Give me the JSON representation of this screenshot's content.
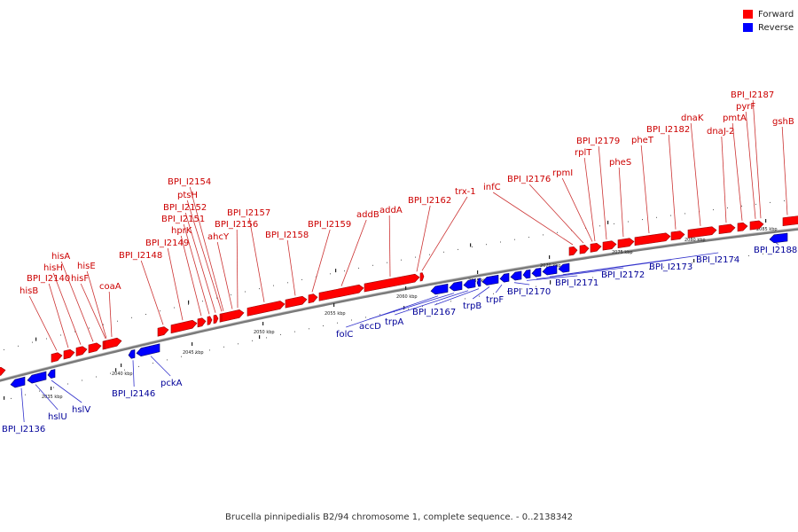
{
  "legend": {
    "forward_label": "Forward",
    "reverse_label": "Reverse",
    "forward_color": "#ff0000",
    "reverse_color": "#0000ff"
  },
  "caption": "Brucella pinnipedialis B2/94 chromosome 1, complete sequence. - 0..2138342",
  "colors": {
    "forward_label": "#cc0000",
    "reverse_label": "#000099",
    "backbone": "#7a7a7a"
  },
  "scale_ticks": [
    "2035 kbp",
    "2040 kbp",
    "2045 kbp",
    "2050 kbp",
    "2055 kbp",
    "2060 kbp",
    "2065 kbp",
    "2070 kbp",
    "2075 kbp",
    "2080 kbp",
    "2085 kbp"
  ],
  "forward_features": [
    "hisB",
    "BPI_I2140",
    "hisH",
    "hisA",
    "hisF",
    "hisE",
    "coaA",
    "BPI_I2148",
    "BPI_I2149",
    "hprK",
    "BPI_I2151",
    "BPI_I2152",
    "ptsH",
    "BPI_I2154",
    "ahcY",
    "BPI_I2156",
    "BPI_I2157",
    "BPI_I2158",
    "BPI_I2159",
    "addB",
    "addA",
    "BPI_I2162",
    "trx-1",
    "infC",
    "BPI_I2176",
    "rpmI",
    "rplT",
    "BPI_I2179",
    "pheS",
    "pheT",
    "BPI_I2182",
    "dnaK",
    "dnaJ-2",
    "pmtA",
    "pyrF",
    "BPI_I2187",
    "gshB"
  ],
  "reverse_features": [
    "BPI_I2136",
    "hslU",
    "hslV",
    "BPI_I2146",
    "pckA",
    "folC",
    "accD",
    "trpA",
    "BPI_I2167",
    "trpB",
    "trpF",
    "BPI_I2170",
    "BPI_I2171",
    "BPI_I2172",
    "BPI_I2173",
    "BPI_I2174",
    "BPI_I2188"
  ]
}
